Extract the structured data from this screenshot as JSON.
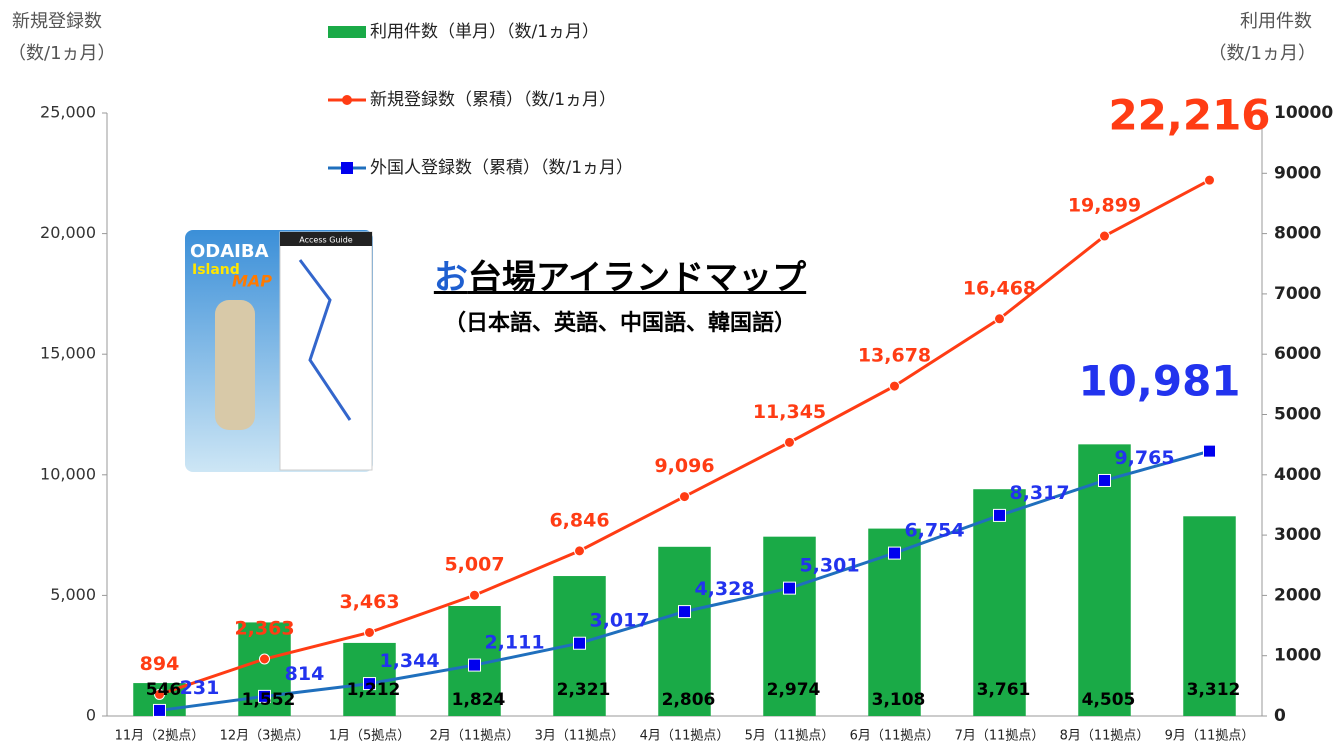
{
  "chart_data": {
    "type": "combo",
    "left_axis_label": [
      "新規登録数",
      "（数/1ヵ月）"
    ],
    "right_axis_label": [
      "利用件数",
      "（数/1ヵ月）"
    ],
    "categories": [
      "11月（2拠点）",
      "12月（3拠点）",
      "1月（5拠点）",
      "2月（11拠点）",
      "3月（11拠点）",
      "4月（11拠点）",
      "5月（11拠点）",
      "6月（11拠点）",
      "7月（11拠点）",
      "8月（11拠点）",
      "9月（11拠点）"
    ],
    "ylim": [
      0,
      25000
    ],
    "yticks": [
      0,
      {
        "value": 5000,
        "label": "5,000"
      },
      {
        "value": 10000,
        "label": "10,000"
      },
      {
        "value": 15000,
        "label": "15,000"
      },
      {
        "value": 20000,
        "label": "20,000"
      },
      {
        "value": 25000,
        "label": "25,000"
      }
    ],
    "y2lim": [
      0,
      10000
    ],
    "y2ticks": [
      0,
      1000,
      2000,
      3000,
      4000,
      5000,
      6000,
      7000,
      8000,
      9000,
      10000
    ],
    "legend": "top",
    "series": [
      {
        "name": "利用件数（単月）（数/1ヵ月）",
        "type": "bar",
        "axis": "y2",
        "color": "#1aaa47",
        "values": [
          546,
          1552,
          1212,
          1824,
          2321,
          2806,
          2974,
          3108,
          3761,
          4505,
          3312
        ],
        "value_labels": [
          "546",
          "1,552",
          "1,212",
          "1,824",
          "2,321",
          "2,806",
          "2,974",
          "3,108",
          "3,761",
          "4,505",
          "3,312"
        ]
      },
      {
        "name": "新規登録数（累積）（数/1ヵ月）",
        "type": "line",
        "marker": "circle",
        "color": "#ff3c14",
        "values": [
          894,
          2363,
          3463,
          5007,
          6846,
          9096,
          11345,
          13678,
          16468,
          19899,
          22216
        ],
        "value_labels": [
          "894",
          "2,363",
          "3,463",
          "5,007",
          "6,846",
          "9,096",
          "11,345",
          "13,678",
          "16,468",
          "19,899",
          "22,216"
        ]
      },
      {
        "name": "外国人登録数（累積）（数/1ヵ月）",
        "type": "line",
        "marker": "square",
        "color": "#1f6fbd",
        "values": [
          231,
          814,
          1344,
          2111,
          3017,
          4328,
          5301,
          6754,
          8317,
          9765,
          10981
        ],
        "value_labels": [
          "231",
          "814",
          "1,344",
          "2,111",
          "3,017",
          "4,328",
          "5,301",
          "6,754",
          "8,317",
          "9,765",
          "10,981"
        ]
      }
    ],
    "annotation": {
      "title": "お台場アイランドマップ",
      "subtitle": "（日本語、英語、中国語、韓国語）",
      "thumbnail": [
        "ODAIBA",
        "Island",
        "MAP",
        "Access Guide"
      ]
    }
  }
}
